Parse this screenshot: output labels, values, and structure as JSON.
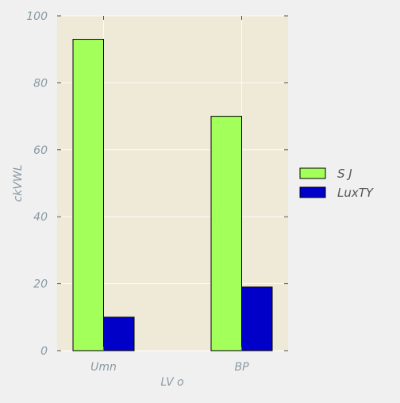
{
  "chart_data": {
    "type": "bar",
    "title": "",
    "xlabel": "LV  o",
    "ylabel": "ckVWL",
    "categories": [
      "Umn",
      "BP"
    ],
    "series": [
      {
        "name": "S J",
        "values": [
          93,
          70
        ],
        "color": "#a3ff59"
      },
      {
        "name": "LuxTY",
        "values": [
          10,
          19
        ],
        "color": "#0000c8"
      }
    ],
    "ylim": [
      0,
      100
    ],
    "yticks": [
      0,
      20,
      40,
      60,
      80,
      100
    ],
    "grid": true,
    "legend_position": "right",
    "plot_background": "#efe9d8",
    "figure_background": "#f0f0f0"
  }
}
